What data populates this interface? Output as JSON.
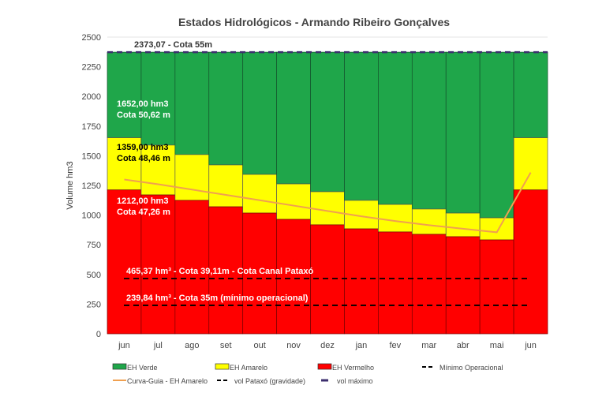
{
  "chart_data": {
    "type": "bar",
    "stacked": true,
    "title": "Estados Hidrológicos - Armando Ribeiro Gonçalves",
    "ylabel": "Volume hm3",
    "xlabel": "",
    "ylim": [
      0,
      2500
    ],
    "yticks": [
      0,
      250,
      500,
      750,
      1000,
      1250,
      1500,
      1750,
      2000,
      2250,
      2500
    ],
    "grid": true,
    "legend_position": "bottom",
    "categories": [
      "jun",
      "jul",
      "ago",
      "set",
      "out",
      "nov",
      "dez",
      "jan",
      "fev",
      "mar",
      "abr",
      "mai",
      "jun"
    ],
    "series": [
      {
        "name": "EH Verde",
        "color": "#1fa64a",
        "top": 2373.07
      },
      {
        "name": "EH Amarelo",
        "color": "#ffff00",
        "values": [
          1652,
          1590,
          1510,
          1423,
          1343,
          1263,
          1197,
          1124,
          1090,
          1051,
          1017,
          977,
          1652
        ]
      },
      {
        "name": "EH Vermelho",
        "color": "#ff0000",
        "values": [
          1212,
          1170,
          1124,
          1070,
          1017,
          964,
          918,
          884,
          858,
          838,
          818,
          791,
          1212
        ]
      },
      {
        "name": "Curva-Guia - EH Amarelo",
        "type": "line",
        "color": "#f0a050",
        "values": [
          1300,
          1260,
          1215,
          1170,
          1125,
          1080,
          1035,
          990,
          950,
          915,
          885,
          855,
          1359
        ]
      }
    ],
    "reference_lines": [
      {
        "name": "vol máximo",
        "value": 2373.07,
        "color": "#3c2f6e",
        "label": "2373,07 - Cota 55m"
      },
      {
        "name": "vol Pataxó (gravidade)",
        "value": 465.37,
        "color": "#000000",
        "label": "465,37 hm³ - Cota 39,11m - Cota Canal Pataxó"
      },
      {
        "name": "Mínimo Operacional",
        "value": 239.84,
        "color": "#000000",
        "label": "239,84 hm³ - Cota 35m (mínimo operacional)"
      }
    ],
    "annotations": [
      {
        "text1": "1652,00 hm3",
        "text2": "Cota 50,62 m",
        "value": 1652,
        "color": "#ffffff"
      },
      {
        "text1": "1359,00 hm3",
        "text2": "Cota 48,46 m",
        "value": 1359,
        "color": "#000000"
      },
      {
        "text1": "1212,00 hm3",
        "text2": "Cota 47,26 m",
        "value": 1212,
        "color": "#ffffff"
      }
    ],
    "legend": [
      {
        "label": "EH Verde",
        "kind": "box",
        "color": "#1fa64a"
      },
      {
        "label": "EH Amarelo",
        "kind": "box",
        "color": "#ffff00"
      },
      {
        "label": "EH Vermelho",
        "kind": "box",
        "color": "#ff0000"
      },
      {
        "label": "Mínimo Operacional",
        "kind": "dash",
        "color": "#000000"
      },
      {
        "label": "Curva-Guia - EH Amarelo",
        "kind": "line",
        "color": "#f0a050"
      },
      {
        "label": "vol Pataxó (gravidade)",
        "kind": "dash",
        "color": "#000000"
      },
      {
        "label": "vol máximo",
        "kind": "thick",
        "color": "#3c2f6e"
      }
    ]
  }
}
